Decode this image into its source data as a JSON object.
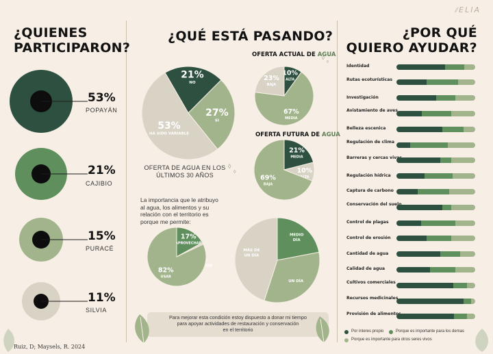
{
  "brand": "ELIA",
  "credit": "Ruiz, D; Maysels, R. 2024",
  "colors": {
    "dark": "#2e5040",
    "mid": "#5f8f5d",
    "light": "#a2b48c",
    "beige": "#d9d3c6",
    "bg": "#f7efe5"
  },
  "left": {
    "title_line1": "¿QUIENES",
    "title_line2": "PARTICIPARON?",
    "items": [
      {
        "pct": "53%",
        "name": "POPAYÁN"
      },
      {
        "pct": "21%",
        "name": "CAJIBIO"
      },
      {
        "pct": "15%",
        "name": "PURACÉ"
      },
      {
        "pct": "11%",
        "name": "SILVIA"
      }
    ]
  },
  "middle": {
    "title": "¿QUÉ ESTÁ PASANDO?",
    "big_pie": {
      "caption_line1": "OFERTA DE AGUA EN LOS",
      "caption_line2": "ÚLTIMOS 30 AÑOS"
    },
    "oferta_actual": {
      "title_a": "OFERTA ACTUAL DE ",
      "title_b": "AGUA"
    },
    "oferta_futura": {
      "title_a": "OFERTA FUTURA DE ",
      "title_b": "AGUA"
    },
    "question_line1": "La importancia que le atribuyo",
    "question_line2": "al agua, los alimentos y su",
    "question_line3": "relación con el territorio es",
    "question_line4": "porque me permite:",
    "banner_line1": "Para mejorar esta condición estoy dispuesto a donar mi tiempo",
    "banner_line2": "para apoyar actividades de restauración y conservación",
    "banner_line3": "en el territorio"
  },
  "right": {
    "title_line1": "¿POR QUÉ",
    "title_line2": "QUIERO AYUDAR?",
    "legend": [
      "Por interes propio",
      "Porque es importante para los demas",
      "Porque es importante para otros seres vivos"
    ]
  },
  "chart_data": [
    {
      "type": "pie",
      "id": "participantes",
      "slices": [
        {
          "name": "POPAYÁN",
          "value": 53
        },
        {
          "name": "CAJIBIO",
          "value": 21
        },
        {
          "name": "PURACÉ",
          "value": 15
        },
        {
          "name": "SILVIA",
          "value": 11
        }
      ]
    },
    {
      "type": "pie",
      "id": "oferta_30_anos",
      "title": "OFERTA DE AGUA EN LOS ÚLTIMOS 30 AÑOS",
      "slices": [
        {
          "label": "NO",
          "value": 21,
          "text": "21%",
          "color": "#2e5040"
        },
        {
          "label": "SI",
          "value": 27,
          "text": "27%",
          "color": "#a2b48c"
        },
        {
          "label": "HA SIDO VARIABLE",
          "value": 53,
          "text": "53%",
          "color": "#d9d3c6"
        }
      ]
    },
    {
      "type": "pie",
      "id": "oferta_actual",
      "title": "OFERTA ACTUAL DE AGUA",
      "slices": [
        {
          "label": "ALTA",
          "value": 10,
          "text": "10%",
          "color": "#2e5040"
        },
        {
          "label": "MEDIA",
          "value": 67,
          "text": "67%",
          "color": "#a2b48c"
        },
        {
          "label": "BAJA",
          "value": 23,
          "text": "23%",
          "color": "#d9d3c6"
        }
      ]
    },
    {
      "type": "pie",
      "id": "oferta_futura",
      "title": "OFERTA FUTURA DE AGUA",
      "slices": [
        {
          "label": "MEDIA",
          "value": 21,
          "text": "21%",
          "color": "#2e5040"
        },
        {
          "label": "ALTA",
          "value": 10,
          "text": "10%",
          "color": "#d9d3c6"
        },
        {
          "label": "BAJA",
          "value": 69,
          "text": "69%",
          "color": "#a2b48c"
        }
      ]
    },
    {
      "type": "pie",
      "id": "importancia",
      "slices": [
        {
          "label": "APROVECHAR",
          "value": 17,
          "text": "17%",
          "color": "#5f8f5d"
        },
        {
          "label": "DISFRUTAR",
          "value": 1,
          "text": "1%",
          "color": "#d9d3c6"
        },
        {
          "label": "USAR",
          "value": 82,
          "text": "82%",
          "color": "#a2b48c"
        }
      ]
    },
    {
      "type": "pie",
      "id": "tiempo_donado",
      "slices": [
        {
          "label": "MEDIO DÍA",
          "value": 22,
          "color": "#5f8f5d"
        },
        {
          "label": "UN DÍA",
          "value": 33,
          "color": "#a2b48c"
        },
        {
          "label": "MÁS DE UN DÍA",
          "value": 45,
          "color": "#d9d3c6"
        }
      ]
    },
    {
      "type": "bar",
      "id": "por_que_ayudar",
      "stacked": true,
      "series_names": [
        "Por interes propio",
        "Porque es importante para los demas",
        "Porque es importante para otros seres vivos"
      ],
      "categories": [
        {
          "name": "Identidad",
          "values": [
            62,
            24,
            14
          ]
        },
        {
          "name": "Rutas ecoturísticas",
          "values": [
            38,
            40,
            22
          ]
        },
        {
          "name": "Investigación",
          "values": [
            50,
            25,
            25
          ]
        },
        {
          "name": "Avistamiento de aves",
          "values": [
            32,
            38,
            30
          ]
        },
        {
          "name": "Belleza escenica",
          "values": [
            58,
            27,
            15
          ]
        },
        {
          "name": "Regulación de clima",
          "values": [
            17,
            48,
            35
          ]
        },
        {
          "name": "Barreras y cercas vivas",
          "values": [
            56,
            14,
            30
          ]
        },
        {
          "name": "Regulación hídrica",
          "values": [
            36,
            35,
            29
          ]
        },
        {
          "name": "Captura de carbono",
          "values": [
            27,
            40,
            33
          ]
        },
        {
          "name": "Conservación del suelo",
          "values": [
            58,
            12,
            30
          ]
        },
        {
          "name": "Control de plagas",
          "values": [
            31,
            44,
            25
          ]
        },
        {
          "name": "Control de erosión",
          "values": [
            38,
            32,
            30
          ]
        },
        {
          "name": "Cantidad de agua",
          "values": [
            56,
            25,
            19
          ]
        },
        {
          "name": "Calidad de agua",
          "values": [
            43,
            32,
            25
          ]
        },
        {
          "name": "Cultivos comerciales",
          "values": [
            72,
            18,
            10
          ]
        },
        {
          "name": "Recursos medicinales",
          "values": [
            85,
            10,
            5
          ]
        },
        {
          "name": "Provisión de alimentos",
          "values": [
            73,
            17,
            10
          ]
        }
      ]
    }
  ]
}
